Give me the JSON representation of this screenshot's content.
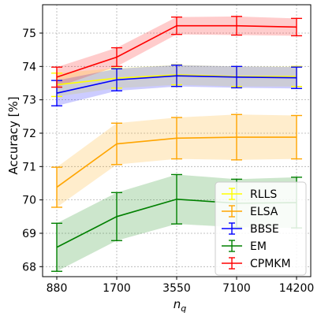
{
  "chart_data": {
    "type": "line",
    "xlabel": "n",
    "xlabel_sub": "q",
    "ylabel": "Accuracy [%]",
    "categories": [
      "880",
      "1700",
      "3550",
      "7100",
      "14200"
    ],
    "ylim": [
      67.7,
      75.85
    ],
    "yticks": [
      68,
      69,
      70,
      71,
      72,
      73,
      74,
      75
    ],
    "grid": true,
    "legend_position": "lower-right",
    "series": [
      {
        "name": "RLLS",
        "color": "#ffff00",
        "values": [
          73.45,
          73.65,
          73.75,
          73.7,
          73.7
        ],
        "err": [
          0.35,
          0.3,
          0.3,
          0.3,
          0.3
        ]
      },
      {
        "name": "ELSA",
        "color": "#ffa500",
        "values": [
          70.38,
          71.68,
          71.85,
          71.88,
          71.88
        ],
        "err": [
          0.6,
          0.62,
          0.62,
          0.68,
          0.65
        ]
      },
      {
        "name": "BBSE",
        "color": "#0000ff",
        "values": [
          73.2,
          73.6,
          73.72,
          73.68,
          73.66
        ],
        "err": [
          0.38,
          0.33,
          0.32,
          0.32,
          0.32
        ]
      },
      {
        "name": "EM",
        "color": "#008000",
        "values": [
          68.58,
          69.5,
          70.02,
          69.9,
          69.92
        ],
        "err": [
          0.72,
          0.72,
          0.74,
          0.72,
          0.76
        ]
      },
      {
        "name": "CPMKM",
        "color": "#ff0000",
        "values": [
          73.68,
          74.28,
          75.22,
          75.22,
          75.18
        ],
        "err": [
          0.3,
          0.28,
          0.26,
          0.28,
          0.26
        ]
      }
    ]
  }
}
